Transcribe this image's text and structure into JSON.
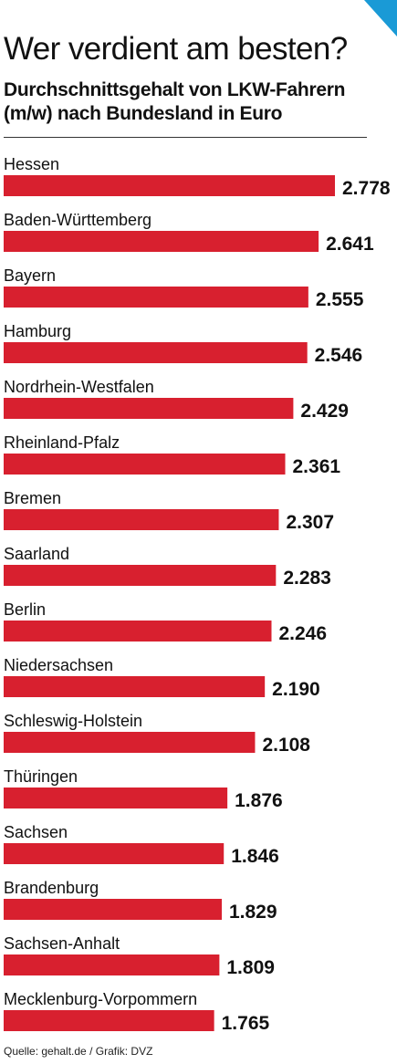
{
  "header": {
    "title": "Wer verdient am besten?",
    "subtitle": "Durchschnittsgehalt von LKW-Fahrern (m/w) nach Bundesland in Euro"
  },
  "footer": {
    "source": "Quelle: gehalt.de / Grafik: DVZ"
  },
  "colors": {
    "bar": "#d8202f",
    "corner": "#1a9ad6"
  },
  "chart_data": {
    "type": "bar",
    "orientation": "horizontal",
    "categories": [
      "Hessen",
      "Baden-Württemberg",
      "Bayern",
      "Hamburg",
      "Nordrhein-Westfalen",
      "Rheinland-Pfalz",
      "Bremen",
      "Saarland",
      "Berlin",
      "Niedersachsen",
      "Schleswig-Holstein",
      "Thüringen",
      "Sachsen",
      "Brandenburg",
      "Sachsen-Anhalt",
      "Mecklenburg-Vorpommern"
    ],
    "values": [
      2778,
      2641,
      2555,
      2546,
      2429,
      2361,
      2307,
      2283,
      2246,
      2190,
      2108,
      1876,
      1846,
      1829,
      1809,
      1765
    ],
    "value_labels": [
      "2.778",
      "2.641",
      "2.555",
      "2.546",
      "2.429",
      "2.361",
      "2.307",
      "2.283",
      "2.246",
      "2.190",
      "2.108",
      "1.876",
      "1.846",
      "1.829",
      "1.809",
      "1.765"
    ],
    "title": "Wer verdient am besten?",
    "xlabel": "",
    "ylabel": "",
    "grid": false,
    "legend": "none"
  }
}
